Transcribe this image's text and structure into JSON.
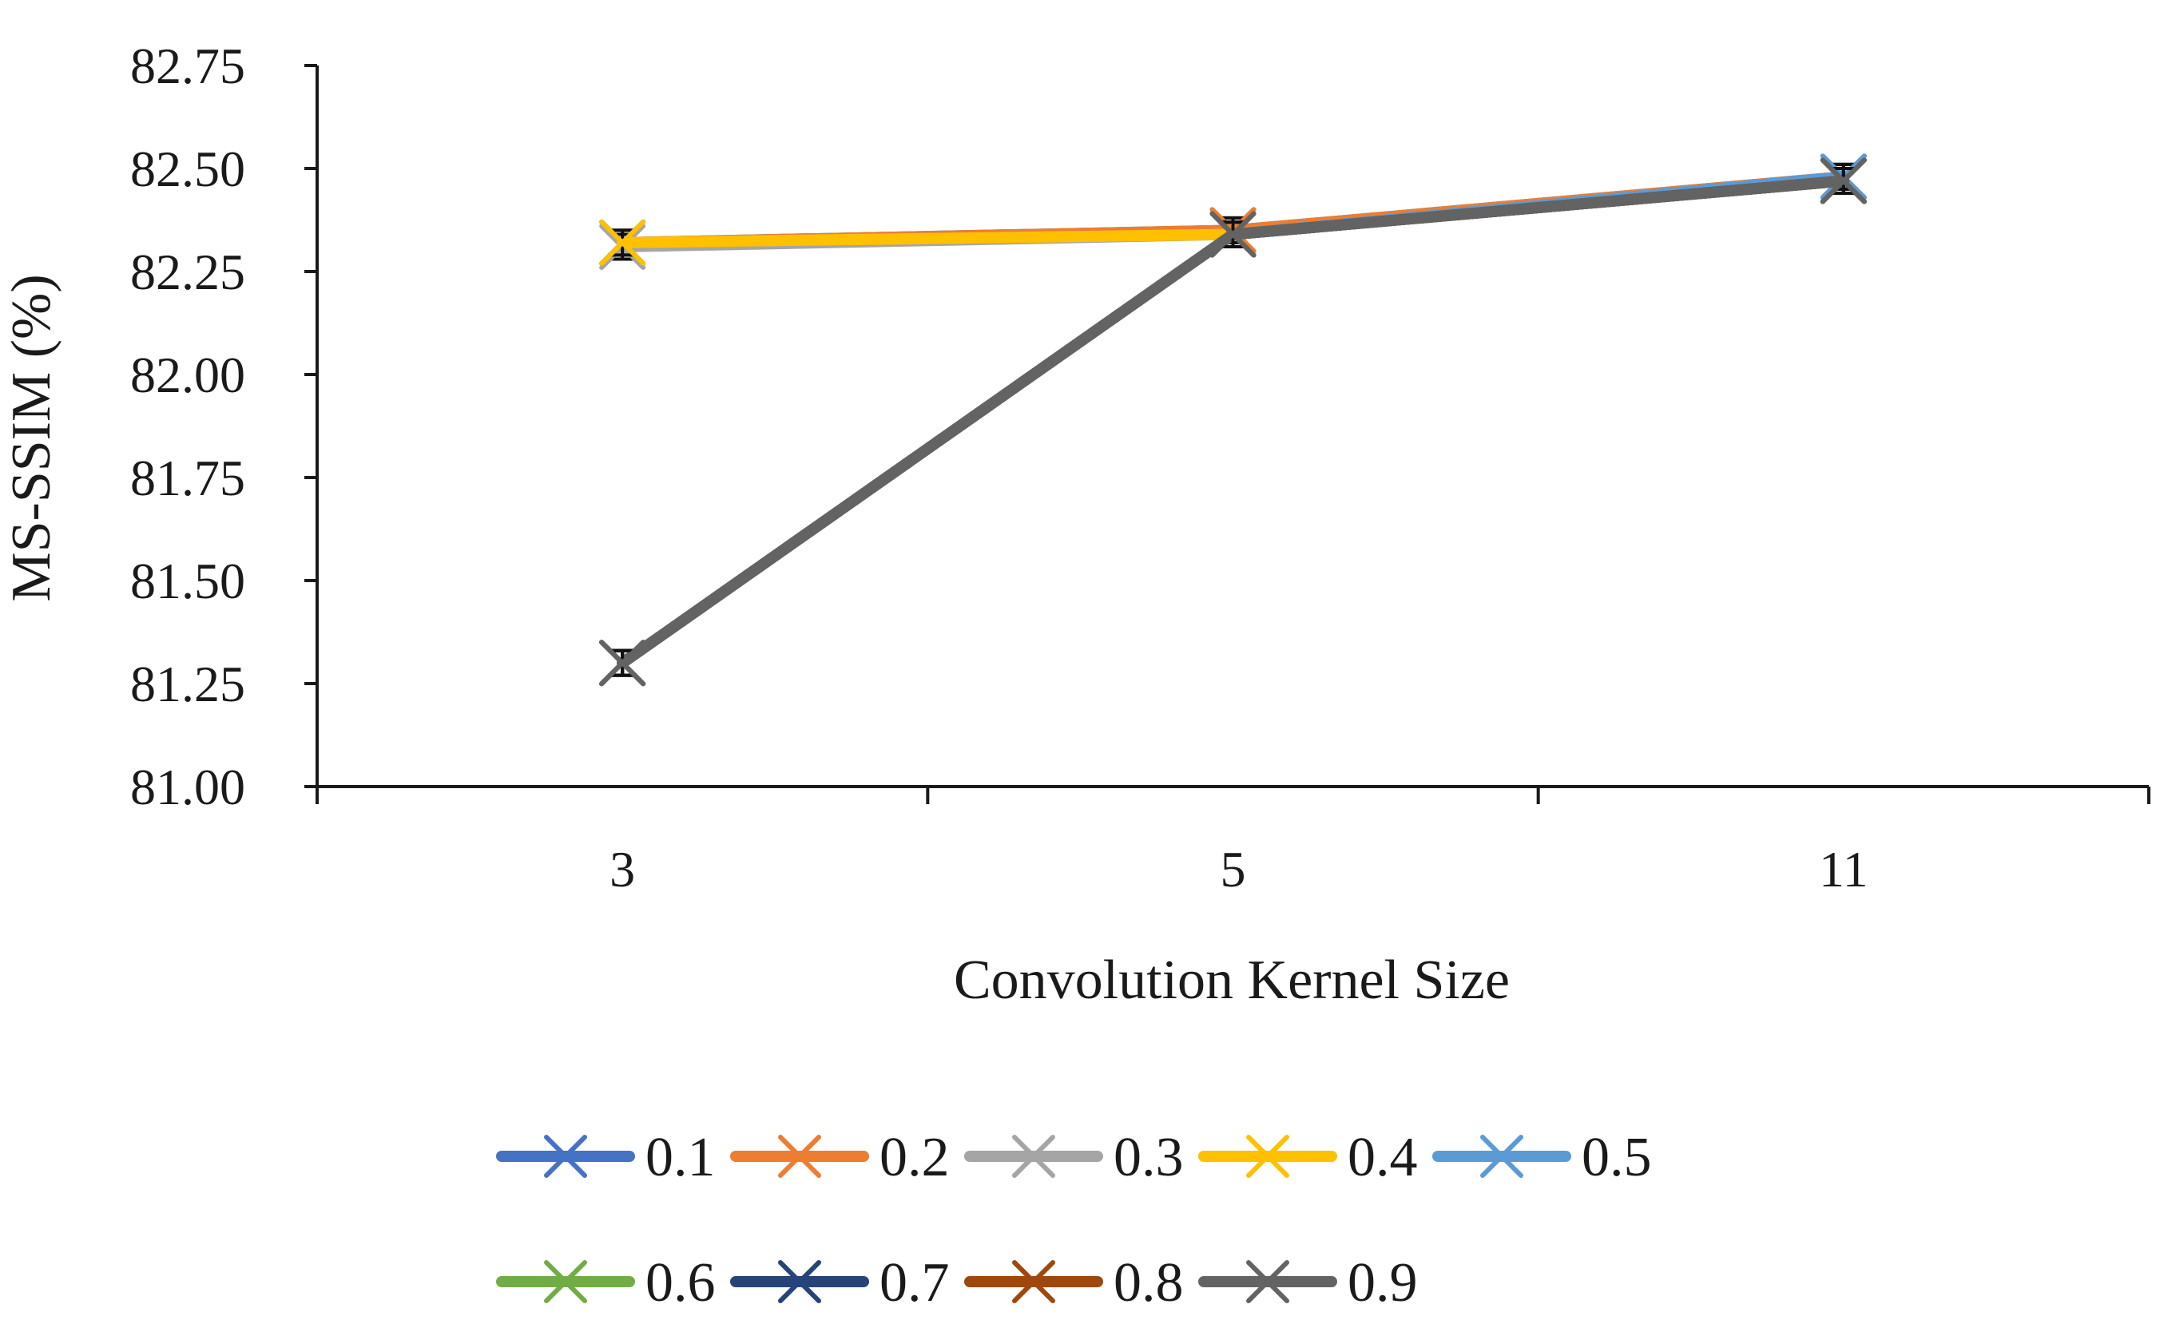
{
  "chart_data": {
    "type": "line",
    "title": "",
    "xlabel": "Convolution Kernel Size",
    "ylabel": "MS-SSIM (%)",
    "categories": [
      "3",
      "5",
      "11"
    ],
    "ylim": [
      81.0,
      82.75
    ],
    "yticks": [
      "81.00",
      "81.25",
      "81.50",
      "81.75",
      "82.00",
      "82.25",
      "82.50",
      "82.75"
    ],
    "grid": false,
    "legend_position": "bottom",
    "series": [
      {
        "name": "0.1",
        "color": "#4472C4",
        "values": [
          82.32,
          82.35,
          82.48
        ],
        "error": [
          0.03,
          0.03,
          0.03
        ]
      },
      {
        "name": "0.2",
        "color": "#ED7D31",
        "values": [
          82.32,
          82.35,
          82.48
        ],
        "error": [
          0.03,
          0.03,
          0.03
        ]
      },
      {
        "name": "0.3",
        "color": "#A5A5A5",
        "values": [
          82.31,
          82.34,
          82.47
        ],
        "error": [
          0.03,
          0.03,
          0.03
        ]
      },
      {
        "name": "0.4",
        "color": "#FFC000",
        "values": [
          82.32,
          82.34,
          82.47
        ],
        "error": [
          0.03,
          0.03,
          0.03
        ]
      },
      {
        "name": "0.5",
        "color": "#5B9BD5",
        "values": [
          81.3,
          82.34,
          82.48
        ],
        "error": [
          0.03,
          0.03,
          0.03
        ]
      },
      {
        "name": "0.6",
        "color": "#70AD47",
        "values": [
          81.3,
          82.34,
          82.47
        ],
        "error": [
          0.03,
          0.03,
          0.03
        ]
      },
      {
        "name": "0.7",
        "color": "#264478",
        "values": [
          81.3,
          82.34,
          82.47
        ],
        "error": [
          0.03,
          0.03,
          0.03
        ]
      },
      {
        "name": "0.8",
        "color": "#9E480E",
        "values": [
          81.3,
          82.34,
          82.47
        ],
        "error": [
          0.03,
          0.03,
          0.03
        ]
      },
      {
        "name": "0.9",
        "color": "#636363",
        "values": [
          81.3,
          82.34,
          82.47
        ],
        "error": [
          0.03,
          0.03,
          0.03
        ]
      }
    ]
  }
}
